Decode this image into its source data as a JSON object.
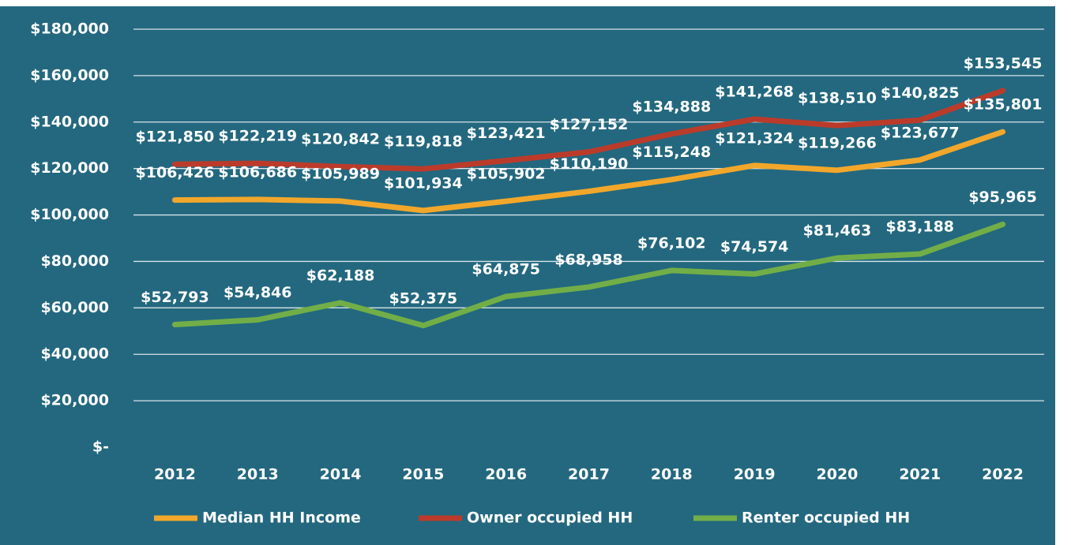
{
  "chart_data": {
    "type": "line",
    "categories": [
      "2012",
      "2013",
      "2014",
      "2015",
      "2016",
      "2017",
      "2018",
      "2019",
      "2020",
      "2021",
      "2022"
    ],
    "series": [
      {
        "name": "Median HH Income",
        "color": "#f2a72b",
        "values": [
          106426,
          106686,
          105989,
          101934,
          105902,
          110190,
          115248,
          121324,
          119266,
          123677,
          135801
        ],
        "value_labels": [
          "$106,426",
          "$106,686",
          "$105,989",
          "$101,934",
          "$105,902",
          "$110,190",
          "$115,248",
          "$121,324",
          "$119,266",
          "$123,677",
          "$135,801"
        ]
      },
      {
        "name": "Owner occupied HH",
        "color": "#bb3b2b",
        "values": [
          121850,
          122219,
          120842,
          119818,
          123421,
          127152,
          134888,
          141268,
          138510,
          140825,
          153545
        ],
        "value_labels": [
          "$121,850",
          "$122,219",
          "$120,842",
          "$119,818",
          "$123,421",
          "$127,152",
          "$134,888",
          "$141,268",
          "$138,510",
          "$140,825",
          "$153,545"
        ]
      },
      {
        "name": "Renter occupied HH",
        "color": "#72ae47",
        "values": [
          52793,
          54846,
          62188,
          52375,
          64875,
          68958,
          76102,
          74574,
          81463,
          83188,
          95965
        ],
        "value_labels": [
          "$52,793",
          "$54,846",
          "$62,188",
          "$52,375",
          "$64,875",
          "$68,958",
          "$76,102",
          "$74,574",
          "$81,463",
          "$83,188",
          "$95,965"
        ]
      }
    ],
    "ylim": [
      0,
      180000
    ],
    "yticks": [
      {
        "value": 0,
        "label": "$-"
      },
      {
        "value": 20000,
        "label": "$20,000"
      },
      {
        "value": 40000,
        "label": "$40,000"
      },
      {
        "value": 60000,
        "label": "$60,000"
      },
      {
        "value": 80000,
        "label": "$80,000"
      },
      {
        "value": 100000,
        "label": "$100,000"
      },
      {
        "value": 120000,
        "label": "$120,000"
      },
      {
        "value": 140000,
        "label": "$140,000"
      },
      {
        "value": 160000,
        "label": "$160,000"
      },
      {
        "value": 180000,
        "label": "$180,000"
      }
    ],
    "grid": true,
    "legend": "bottom"
  }
}
